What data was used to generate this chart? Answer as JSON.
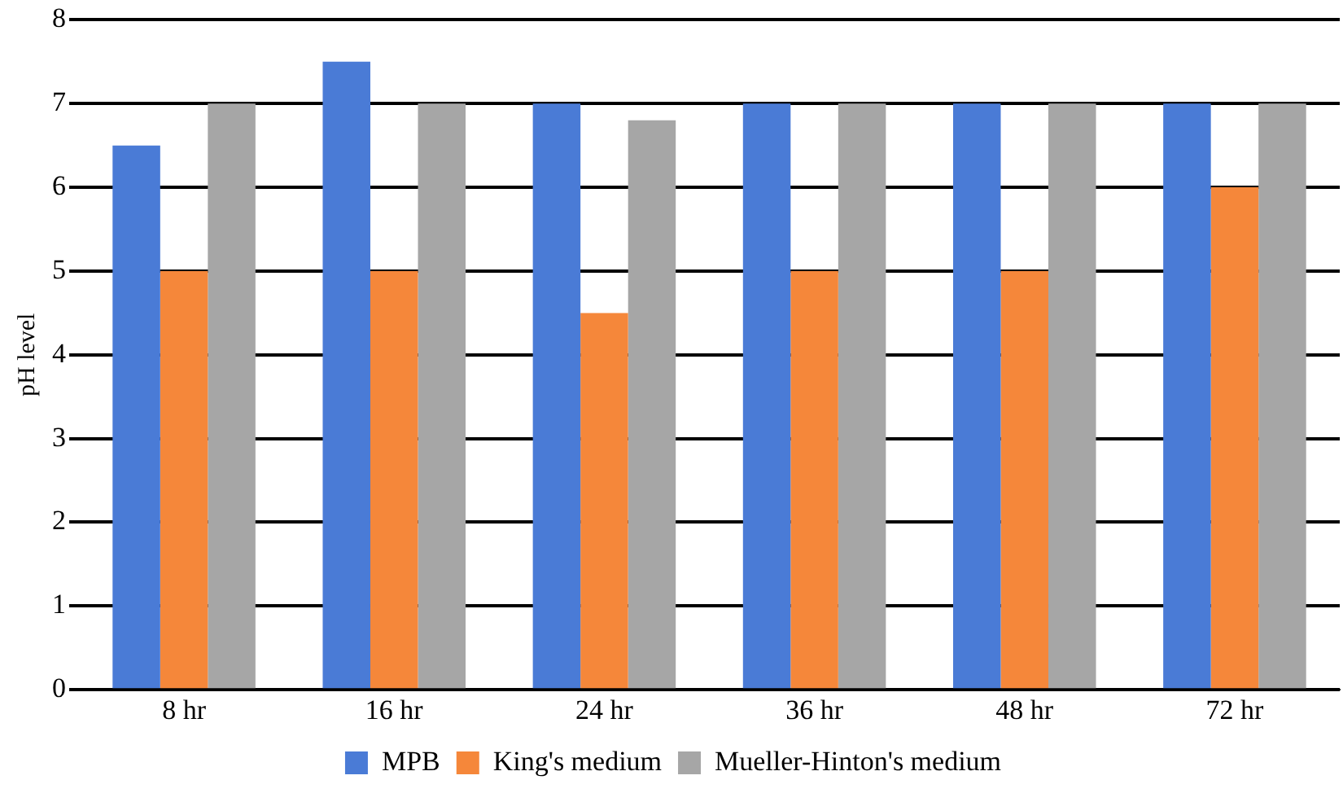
{
  "chart_data": {
    "type": "bar",
    "ylabel": "pH level",
    "categories": [
      "8 hr",
      "16 hr",
      "24 hr",
      "36 hr",
      "48 hr",
      "72 hr"
    ],
    "series": [
      {
        "name": "MPB",
        "color": "#4a7bd6",
        "values": [
          6.5,
          7.5,
          7,
          7,
          7,
          7
        ]
      },
      {
        "name": "King's medium",
        "color": "#f5873a",
        "values": [
          5,
          5,
          4.5,
          5,
          5,
          6
        ]
      },
      {
        "name": "Mueller-Hinton's medium",
        "color": "#a6a6a6",
        "values": [
          7,
          7,
          6.8,
          7,
          7,
          7
        ]
      }
    ],
    "ylim": [
      0,
      8
    ],
    "yticks": [
      0,
      1,
      2,
      3,
      4,
      5,
      6,
      7,
      8
    ],
    "grid": "y",
    "legend": "bottom"
  }
}
